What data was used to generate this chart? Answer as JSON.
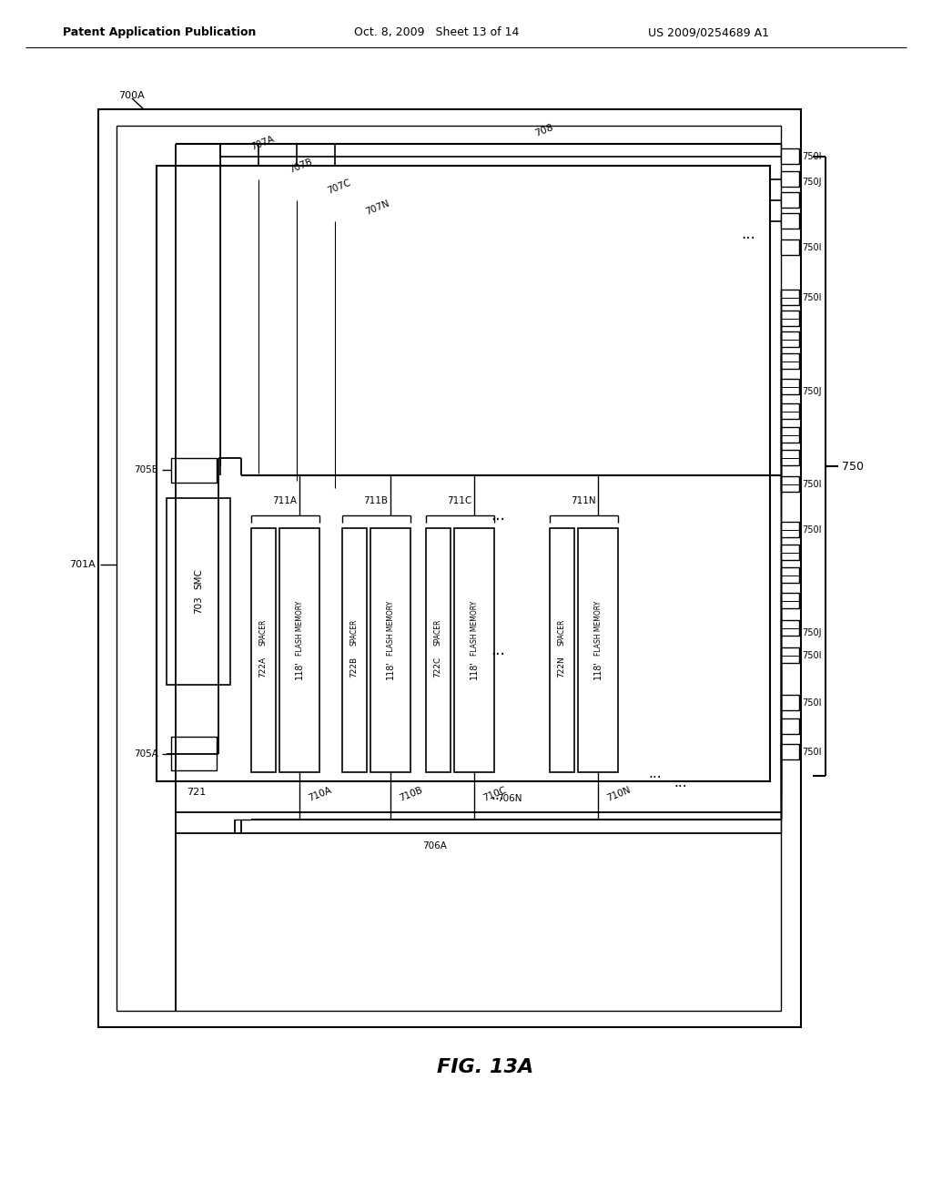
{
  "header_left": "Patent Application Publication",
  "header_mid": "Oct. 8, 2009   Sheet 13 of 14",
  "header_right": "US 2009/0254689 A1",
  "fig_caption": "FIG. 13A",
  "bg": "#ffffff"
}
